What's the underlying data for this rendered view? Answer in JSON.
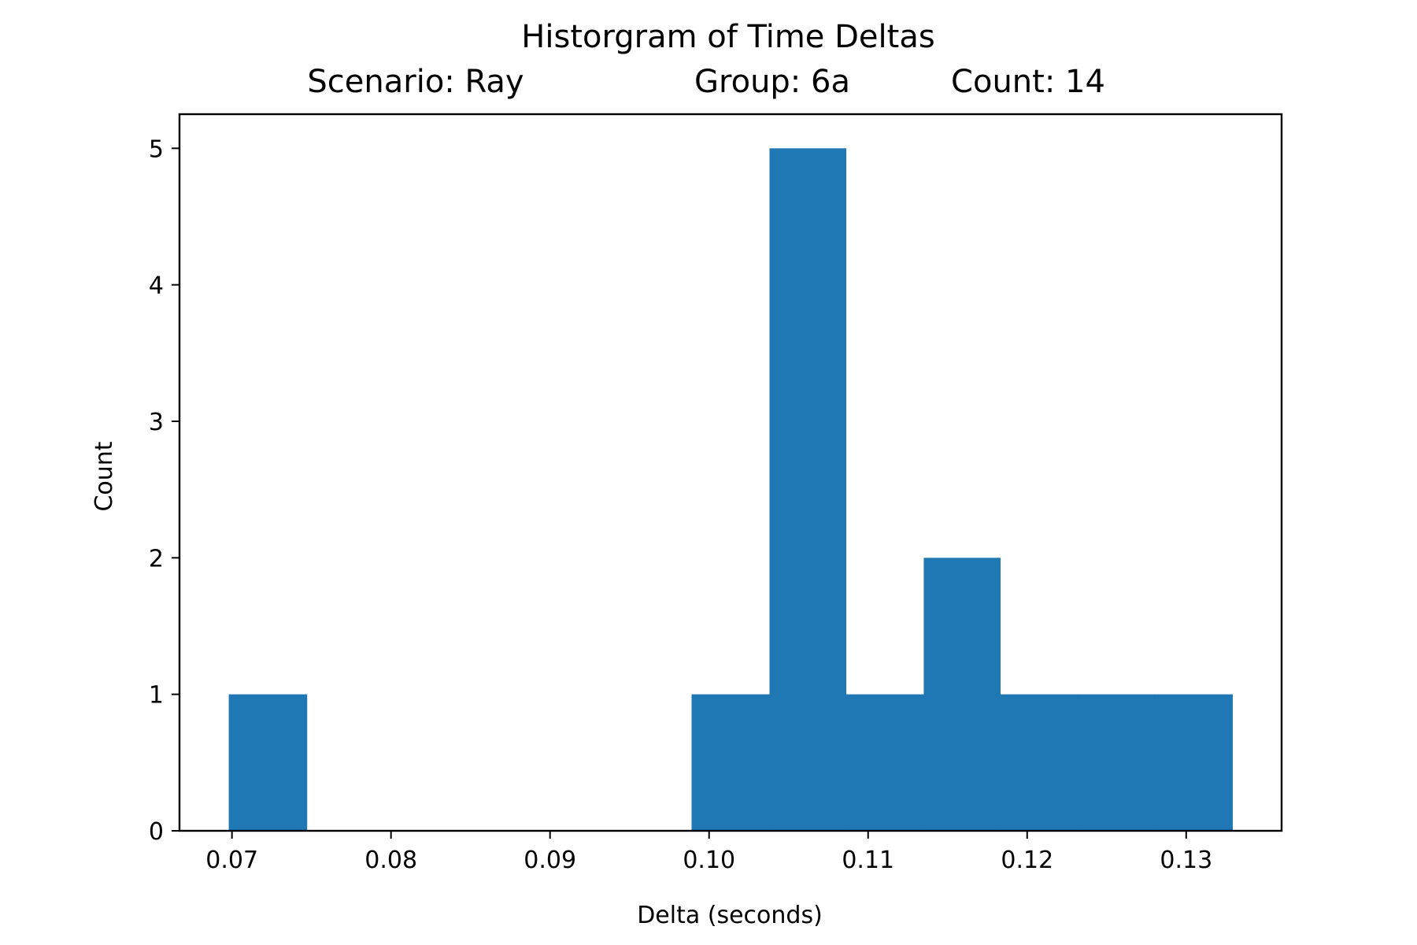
{
  "chart_data": {
    "type": "bar",
    "title": "Historgram of Time Deltas",
    "subtitle_parts": [
      "Scenario: Ray",
      "Group: 6a",
      "Count: 14"
    ],
    "xlabel": "Delta (seconds)",
    "ylabel": "Count",
    "xlim": [
      0.0667,
      0.136
    ],
    "ylim": [
      0,
      5.25
    ],
    "x_ticks": [
      0.07,
      0.08,
      0.09,
      0.1,
      0.11,
      0.12,
      0.13
    ],
    "x_tick_labels": [
      "0.07",
      "0.08",
      "0.09",
      "0.10",
      "0.11",
      "0.12",
      "0.13"
    ],
    "y_ticks": [
      0,
      1,
      2,
      3,
      4,
      5
    ],
    "y_tick_labels": [
      "0",
      "1",
      "2",
      "3",
      "4",
      "5"
    ],
    "bin_edges": [
      0.0698,
      0.0747,
      0.0795,
      0.0844,
      0.0892,
      0.0941,
      0.0989,
      0.1038,
      0.1086,
      0.1135,
      0.1183,
      0.1232,
      0.128,
      0.1329
    ],
    "values": [
      1,
      0,
      0,
      0,
      0,
      0,
      1,
      5,
      1,
      2,
      1,
      1,
      1
    ],
    "bar_color": "#1f77b4",
    "grid": false,
    "legend": "none"
  }
}
